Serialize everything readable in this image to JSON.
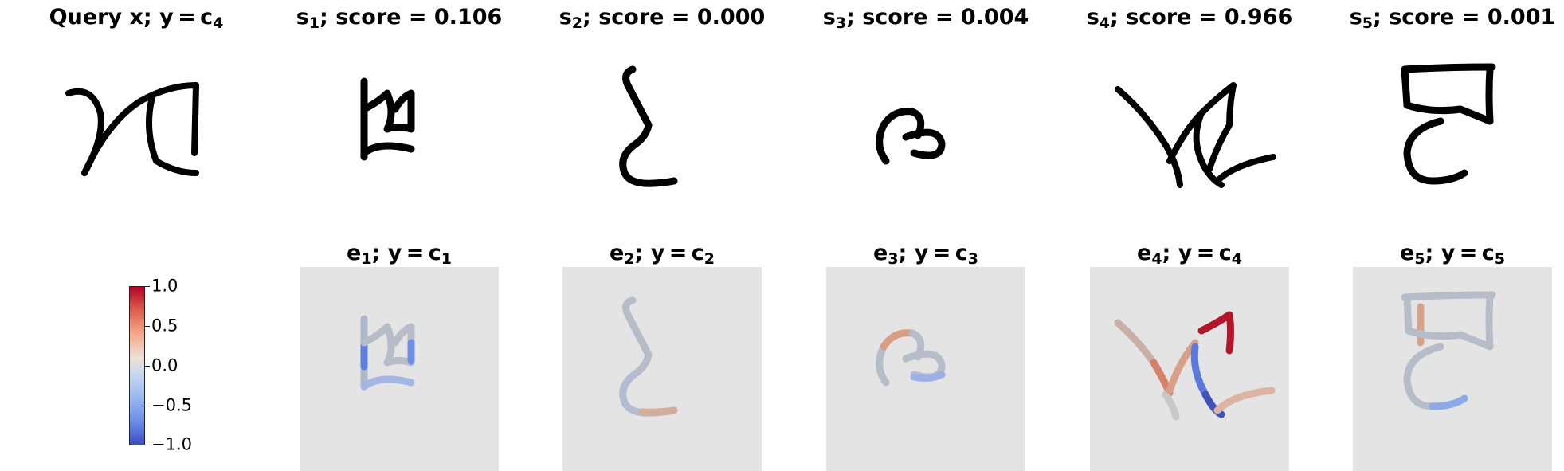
{
  "query": {
    "prefix": "Query x; y = c",
    "sub": "4"
  },
  "supports": [
    {
      "s_prefix": "s",
      "s_sub": "1",
      "score_text": "; score = 0.106",
      "e_prefix": "e",
      "e_sub": "1",
      "y_text": "; y = c",
      "y_sub": "1",
      "score": 0.106
    },
    {
      "s_prefix": "s",
      "s_sub": "2",
      "score_text": "; score = 0.000",
      "e_prefix": "e",
      "e_sub": "2",
      "y_text": "; y = c",
      "y_sub": "2",
      "score": 0.0
    },
    {
      "s_prefix": "s",
      "s_sub": "3",
      "score_text": "; score = 0.004",
      "e_prefix": "e",
      "e_sub": "3",
      "y_text": "; y = c",
      "y_sub": "3",
      "score": 0.004
    },
    {
      "s_prefix": "s",
      "s_sub": "4",
      "score_text": "; score = 0.966",
      "e_prefix": "e",
      "e_sub": "4",
      "y_text": "; y = c",
      "y_sub": "4",
      "score": 0.966
    },
    {
      "s_prefix": "s",
      "s_sub": "5",
      "score_text": "; score = 0.001",
      "e_prefix": "e",
      "e_sub": "5",
      "y_text": "; y = c",
      "y_sub": "5",
      "score": 0.001
    }
  ],
  "colorbar": {
    "ticks": [
      "1.0",
      "0.5",
      "0.0",
      "−0.5",
      "−1.0"
    ],
    "colors": {
      "high": "#b40426",
      "mid": "#dddddd",
      "low": "#3b4cc0"
    }
  }
}
